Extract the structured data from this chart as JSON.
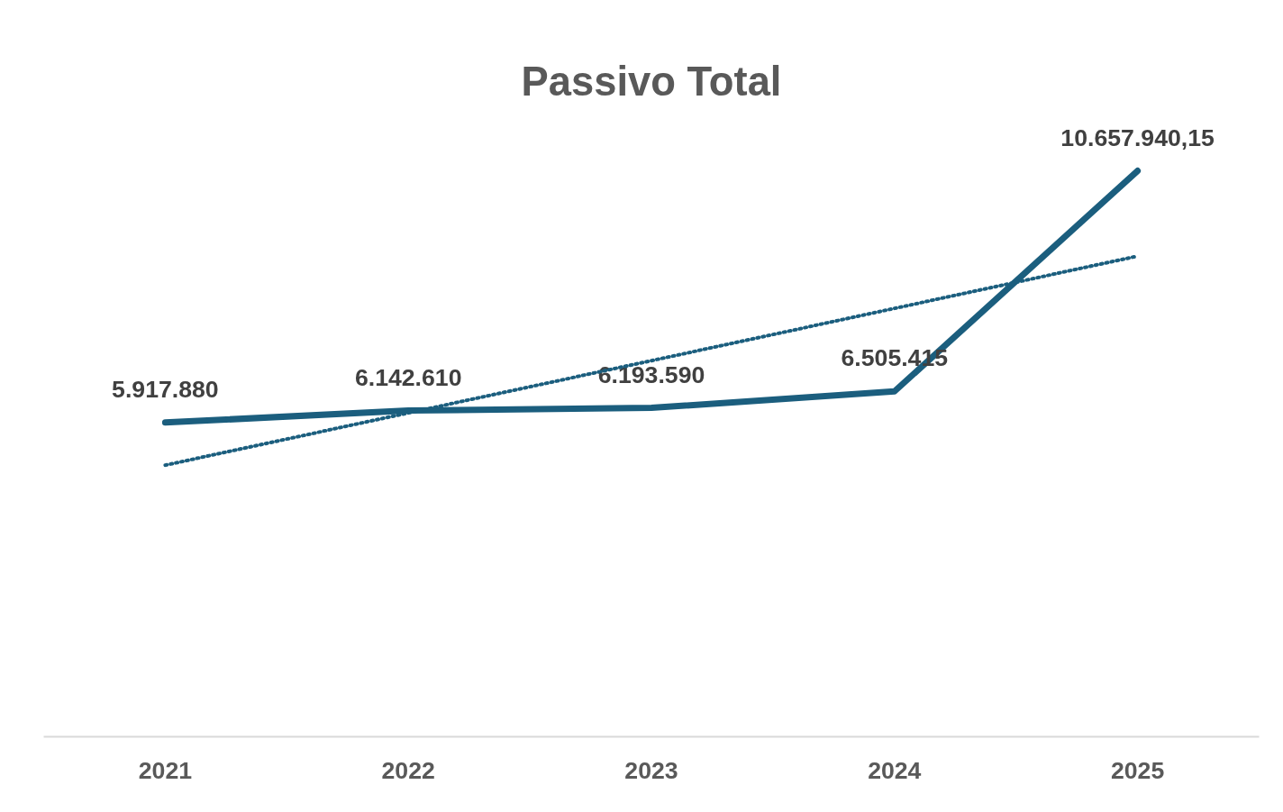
{
  "chart_data": {
    "type": "line",
    "title": "Passivo Total",
    "categories": [
      "2021",
      "2022",
      "2023",
      "2024",
      "2025"
    ],
    "series": [
      {
        "color": "#1b5e7e",
        "values": [
          5917880,
          6142610,
          6193590,
          6505415,
          10657940.15
        ],
        "value_labels": [
          "5.917.880",
          "6.142.610",
          "6.193.590",
          "6.505.415",
          "10.657.940,15"
        ]
      },
      {
        "color": "#1b5e7e",
        "line_style": "dotted",
        "values": [
          5115000,
          6099000,
          7083000,
          8068000,
          9052000
        ]
      }
    ],
    "tick_labels": "x",
    "grid": false,
    "marker": "none"
  }
}
